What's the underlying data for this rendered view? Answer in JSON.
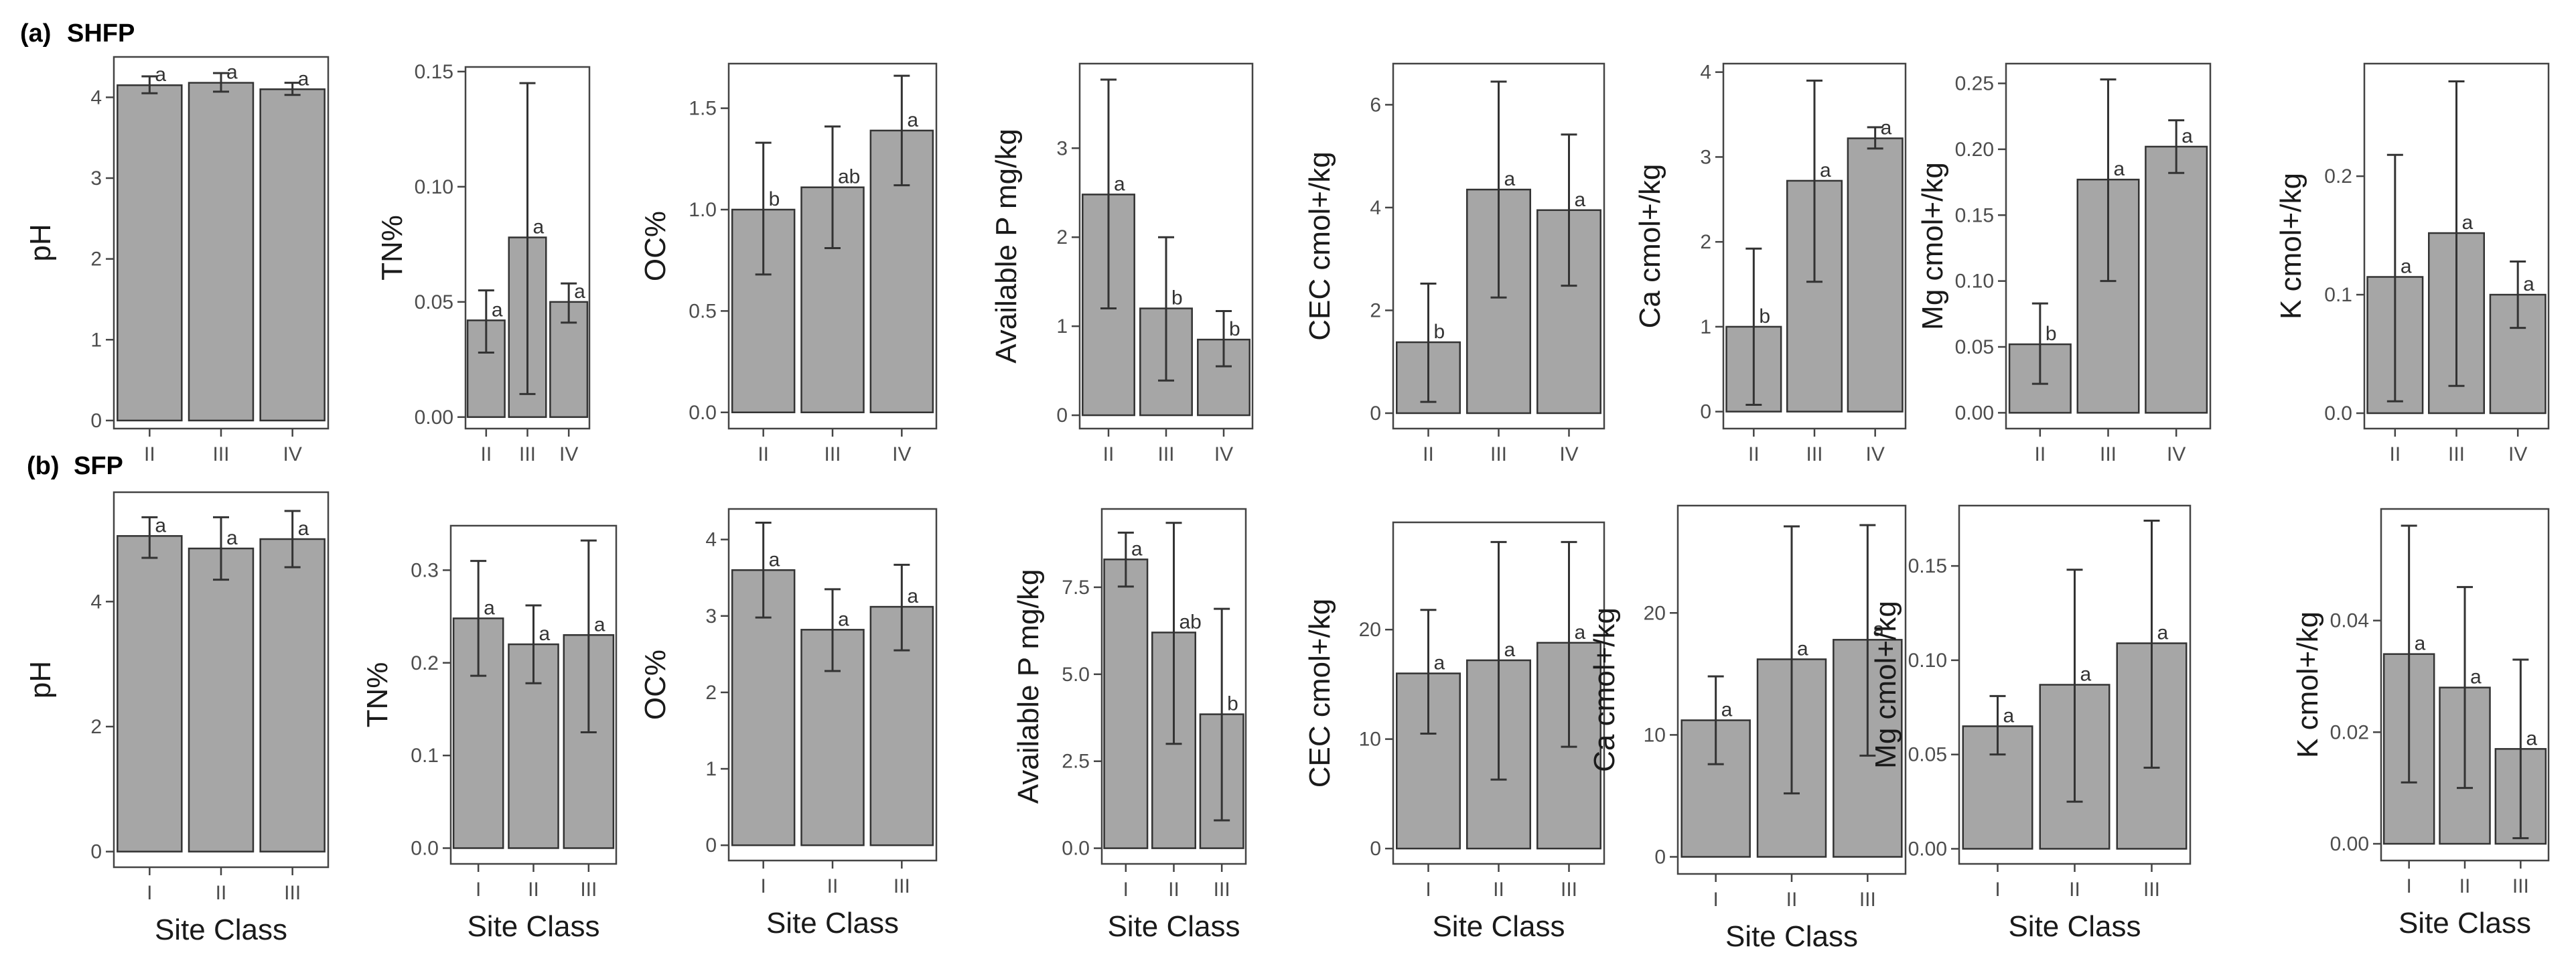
{
  "panels": [
    {
      "tag": "(a)",
      "title": "SHFP"
    },
    {
      "tag": "(b)",
      "title": "SFP"
    }
  ],
  "colors": {
    "bar_fill": "#a6a6a6",
    "bar_stroke": "#333333",
    "frame": "#444444"
  },
  "chart_data": [
    {
      "panel": "(a)",
      "type": "bar",
      "xlabel": "",
      "ylabel": "pH",
      "categories": [
        "II",
        "III",
        "IV"
      ],
      "values": [
        4.15,
        4.18,
        4.1
      ],
      "err_low": [
        4.05,
        4.07,
        4.03
      ],
      "err_high": [
        4.26,
        4.3,
        4.18
      ],
      "letters": [
        "a",
        "a",
        "a"
      ],
      "ylim": [
        -0.1,
        4.5
      ],
      "yticks": [
        0,
        1,
        2,
        3,
        4
      ],
      "ytick_labels": [
        "0",
        "1",
        "2",
        "3",
        "4"
      ],
      "grid": false
    },
    {
      "panel": "(a)",
      "type": "bar",
      "xlabel": "",
      "ylabel": "TN%",
      "categories": [
        "II",
        "III",
        "IV"
      ],
      "values": [
        0.042,
        0.078,
        0.05
      ],
      "err_low": [
        0.028,
        0.01,
        0.041
      ],
      "err_high": [
        0.055,
        0.145,
        0.058
      ],
      "letters": [
        "a",
        "a",
        "a"
      ],
      "ylim": [
        -0.005,
        0.152
      ],
      "yticks": [
        0,
        0.05,
        0.1,
        0.15
      ],
      "ytick_labels": [
        "0.00",
        "0.05",
        "0.10",
        "0.15"
      ],
      "grid": false
    },
    {
      "panel": "(a)",
      "type": "bar",
      "xlabel": "",
      "ylabel": "OC%",
      "categories": [
        "II",
        "III",
        "IV"
      ],
      "values": [
        1.0,
        1.11,
        1.39
      ],
      "err_low": [
        0.68,
        0.81,
        1.12
      ],
      "err_high": [
        1.33,
        1.41,
        1.66
      ],
      "letters": [
        "b",
        "ab",
        "a"
      ],
      "ylim": [
        -0.08,
        1.72
      ],
      "yticks": [
        0,
        0.5,
        1.0,
        1.5
      ],
      "ytick_labels": [
        "0.0",
        "0.5",
        "1.0",
        "1.5"
      ],
      "grid": false
    },
    {
      "panel": "(a)",
      "type": "bar",
      "xlabel": "",
      "ylabel": "Available P mg/kg",
      "categories": [
        "II",
        "III",
        "IV"
      ],
      "values": [
        2.48,
        1.2,
        0.85
      ],
      "err_low": [
        1.2,
        0.39,
        0.55
      ],
      "err_high": [
        3.77,
        2.0,
        1.17
      ],
      "letters": [
        "a",
        "b",
        "b"
      ],
      "ylim": [
        -0.15,
        3.95
      ],
      "yticks": [
        0,
        1,
        2,
        3
      ],
      "ytick_labels": [
        "0",
        "1",
        "2",
        "3"
      ],
      "grid": false
    },
    {
      "panel": "(a)",
      "type": "bar",
      "xlabel": "",
      "ylabel": "CEC cmol+/kg",
      "categories": [
        "II",
        "III",
        "IV"
      ],
      "values": [
        1.38,
        4.35,
        3.95
      ],
      "err_low": [
        0.22,
        2.25,
        2.48
      ],
      "err_high": [
        2.52,
        6.45,
        5.42
      ],
      "letters": [
        "b",
        "a",
        "a"
      ],
      "ylim": [
        -0.3,
        6.8
      ],
      "yticks": [
        0,
        2,
        4,
        6
      ],
      "ytick_labels": [
        "0",
        "2",
        "4",
        "6"
      ],
      "grid": false
    },
    {
      "panel": "(a)",
      "type": "bar",
      "xlabel": "",
      "ylabel": "Ca cmol+/kg",
      "categories": [
        "II",
        "III",
        "IV"
      ],
      "values": [
        1.0,
        2.72,
        3.22
      ],
      "err_low": [
        0.08,
        1.53,
        3.1
      ],
      "err_high": [
        1.92,
        3.9,
        3.35
      ],
      "letters": [
        "b",
        "a",
        "a"
      ],
      "ylim": [
        -0.2,
        4.1
      ],
      "yticks": [
        0,
        1,
        2,
        3,
        4
      ],
      "ytick_labels": [
        "0",
        "1",
        "2",
        "3",
        "4"
      ],
      "grid": false
    },
    {
      "panel": "(a)",
      "type": "bar",
      "xlabel": "",
      "ylabel": "Mg cmol+/kg",
      "categories": [
        "II",
        "III",
        "IV"
      ],
      "values": [
        0.052,
        0.177,
        0.202
      ],
      "err_low": [
        0.022,
        0.1,
        0.182
      ],
      "err_high": [
        0.083,
        0.253,
        0.222
      ],
      "letters": [
        "b",
        "a",
        "a"
      ],
      "ylim": [
        -0.012,
        0.265
      ],
      "yticks": [
        0,
        0.05,
        0.1,
        0.15,
        0.2,
        0.25
      ],
      "ytick_labels": [
        "0.00",
        "0.05",
        "0.10",
        "0.15",
        "0.20",
        "0.25"
      ],
      "grid": false
    },
    {
      "panel": "(a)",
      "type": "bar",
      "xlabel": "",
      "ylabel": "K cmol+/kg",
      "categories": [
        "II",
        "III",
        "IV"
      ],
      "values": [
        0.115,
        0.152,
        0.1
      ],
      "err_low": [
        0.01,
        0.023,
        0.072
      ],
      "err_high": [
        0.218,
        0.28,
        0.128
      ],
      "letters": [
        "a",
        "a",
        "a"
      ],
      "ylim": [
        -0.013,
        0.295
      ],
      "yticks": [
        0,
        0.1,
        0.2
      ],
      "ytick_labels": [
        "0.0",
        "0.1",
        "0.2"
      ],
      "grid": false
    },
    {
      "panel": "(b)",
      "type": "bar",
      "xlabel": "Site Class",
      "ylabel": "pH",
      "categories": [
        "I",
        "II",
        "III"
      ],
      "values": [
        5.05,
        4.85,
        5.0
      ],
      "err_low": [
        4.7,
        4.35,
        4.55
      ],
      "err_high": [
        5.35,
        5.35,
        5.45
      ],
      "letters": [
        "a",
        "a",
        "a"
      ],
      "ylim": [
        -0.25,
        5.75
      ],
      "yticks": [
        0,
        2,
        4
      ],
      "ytick_labels": [
        "0",
        "2",
        "4"
      ],
      "grid": false
    },
    {
      "panel": "(b)",
      "type": "bar",
      "xlabel": "Site Class",
      "ylabel": "TN%",
      "categories": [
        "I",
        "II",
        "III"
      ],
      "values": [
        0.248,
        0.22,
        0.23
      ],
      "err_low": [
        0.186,
        0.178,
        0.125
      ],
      "err_high": [
        0.31,
        0.262,
        0.332
      ],
      "letters": [
        "a",
        "a",
        "a"
      ],
      "ylim": [
        -0.017,
        0.348
      ],
      "yticks": [
        0,
        0.1,
        0.2,
        0.3
      ],
      "ytick_labels": [
        "0.0",
        "0.1",
        "0.2",
        "0.3"
      ],
      "grid": false
    },
    {
      "panel": "(b)",
      "type": "bar",
      "xlabel": "Site Class",
      "ylabel": "OC%",
      "categories": [
        "I",
        "II",
        "III"
      ],
      "values": [
        3.6,
        2.82,
        3.12
      ],
      "err_low": [
        2.98,
        2.28,
        2.55
      ],
      "err_high": [
        4.22,
        3.35,
        3.67
      ],
      "letters": [
        "a",
        "a",
        "a"
      ],
      "ylim": [
        -0.2,
        4.4
      ],
      "yticks": [
        0,
        1,
        2,
        3,
        4
      ],
      "ytick_labels": [
        "0",
        "1",
        "2",
        "3",
        "4"
      ],
      "grid": false
    },
    {
      "panel": "(b)",
      "type": "bar",
      "xlabel": "Site Class",
      "ylabel": "Available P mg/kg",
      "categories": [
        "I",
        "II",
        "III"
      ],
      "values": [
        8.3,
        6.2,
        3.85
      ],
      "err_low": [
        7.52,
        3.0,
        0.8
      ],
      "err_high": [
        9.07,
        9.35,
        6.88
      ],
      "letters": [
        "a",
        "ab",
        "b"
      ],
      "ylim": [
        -0.45,
        9.75
      ],
      "yticks": [
        0,
        2.5,
        5.0,
        7.5
      ],
      "ytick_labels": [
        "0.0",
        "2.5",
        "5.0",
        "7.5"
      ],
      "grid": false
    },
    {
      "panel": "(b)",
      "type": "bar",
      "xlabel": "Site Class",
      "ylabel": "CEC cmol+/kg",
      "categories": [
        "I",
        "II",
        "III"
      ],
      "values": [
        16.0,
        17.2,
        18.8
      ],
      "err_low": [
        10.5,
        6.3,
        9.3
      ],
      "err_high": [
        21.8,
        28.0,
        28.0
      ],
      "letters": [
        "a",
        "a",
        "a"
      ],
      "ylim": [
        -1.4,
        29.8
      ],
      "yticks": [
        0,
        10,
        20
      ],
      "ytick_labels": [
        "0",
        "10",
        "20"
      ],
      "grid": false
    },
    {
      "panel": "(b)",
      "type": "bar",
      "xlabel": "Site Class",
      "ylabel": "Ca cmol+/kg",
      "categories": [
        "I",
        "II",
        "III"
      ],
      "values": [
        11.2,
        16.2,
        17.8
      ],
      "err_low": [
        7.6,
        5.2,
        8.3
      ],
      "err_high": [
        14.8,
        27.1,
        27.2
      ],
      "letters": [
        "a",
        "a",
        "a"
      ],
      "ylim": [
        -1.4,
        28.8
      ],
      "yticks": [
        0,
        10,
        20
      ],
      "ytick_labels": [
        "0",
        "10",
        "20"
      ],
      "grid": false
    },
    {
      "panel": "(b)",
      "type": "bar",
      "xlabel": "Site Class",
      "ylabel": "Mg cmol+/kg",
      "categories": [
        "I",
        "II",
        "III"
      ],
      "values": [
        0.065,
        0.087,
        0.109
      ],
      "err_low": [
        0.05,
        0.025,
        0.043
      ],
      "err_high": [
        0.081,
        0.148,
        0.174
      ],
      "letters": [
        "a",
        "a",
        "a"
      ],
      "ylim": [
        -0.008,
        0.182
      ],
      "yticks": [
        0,
        0.05,
        0.1,
        0.15
      ],
      "ytick_labels": [
        "0.00",
        "0.05",
        "0.10",
        "0.15"
      ],
      "grid": false
    },
    {
      "panel": "(b)",
      "type": "bar",
      "xlabel": "Site Class",
      "ylabel": "K cmol+/kg",
      "categories": [
        "I",
        "II",
        "III"
      ],
      "values": [
        0.034,
        0.028,
        0.017
      ],
      "err_low": [
        0.011,
        0.01,
        0.001
      ],
      "err_high": [
        0.057,
        0.046,
        0.033
      ],
      "letters": [
        "a",
        "a",
        "a"
      ],
      "ylim": [
        -0.003,
        0.06
      ],
      "yticks": [
        0,
        0.02,
        0.04
      ],
      "ytick_labels": [
        "0.00",
        "0.02",
        "0.04"
      ],
      "grid": false
    }
  ]
}
